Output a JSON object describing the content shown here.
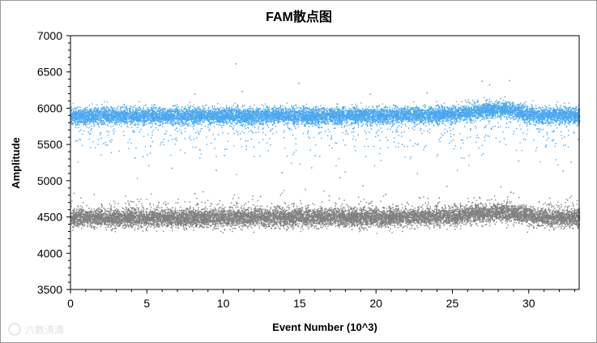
{
  "chart_data": {
    "type": "scatter",
    "title": "FAM散点图",
    "xlabel": "Event Number (10^3)",
    "ylabel": "Amplitude",
    "xlim": [
      0,
      33.3
    ],
    "ylim": [
      3500,
      7000
    ],
    "x_ticks": [
      0,
      5,
      10,
      15,
      20,
      25,
      30
    ],
    "y_ticks": [
      3500,
      4000,
      4500,
      5000,
      5500,
      6000,
      6500,
      7000
    ],
    "grid": false,
    "legend": "none",
    "series": [
      {
        "color": "#4aa8f0",
        "point_count": 12000,
        "band": {
          "x": [
            0,
            5,
            10,
            15,
            20,
            25,
            26.5,
            27.5,
            28.5,
            29.5,
            30.5,
            33.3
          ],
          "center": [
            5900,
            5900,
            5905,
            5905,
            5905,
            5920,
            5960,
            5990,
            5985,
            5950,
            5910,
            5905
          ],
          "spread_sd": 55
        },
        "outlier_points": [
          {
            "x": 10.8,
            "y": 6620
          },
          {
            "x": 8.1,
            "y": 6200
          },
          {
            "x": 14.9,
            "y": 6350
          },
          {
            "x": 26.9,
            "y": 6380
          },
          {
            "x": 28.7,
            "y": 6390
          },
          {
            "x": 27.4,
            "y": 6330
          },
          {
            "x": 11.2,
            "y": 6240
          },
          {
            "x": 23.3,
            "y": 6220
          },
          {
            "x": 19.6,
            "y": 6200
          },
          {
            "x": 9.5,
            "y": 5150
          },
          {
            "x": 13.8,
            "y": 5120
          },
          {
            "x": 17.6,
            "y": 5050
          },
          {
            "x": 24.6,
            "y": 4930
          },
          {
            "x": 29.3,
            "y": 5280
          },
          {
            "x": 32.2,
            "y": 5140
          },
          {
            "x": 4.2,
            "y": 5320
          },
          {
            "x": 6.6,
            "y": 5180
          },
          {
            "x": 31.5,
            "y": 5560
          }
        ]
      },
      {
        "color": "#808080",
        "point_count": 12000,
        "band": {
          "x": [
            0,
            5,
            10,
            15,
            20,
            25,
            26.5,
            27.5,
            28.5,
            29.5,
            30.5,
            33.3
          ],
          "center": [
            4490,
            4490,
            4495,
            4500,
            4500,
            4515,
            4545,
            4560,
            4560,
            4540,
            4500,
            4495
          ],
          "spread_sd": 60
        },
        "outlier_points": [
          {
            "x": 8.1,
            "y": 4830
          },
          {
            "x": 24.1,
            "y": 4770
          },
          {
            "x": 28.8,
            "y": 4850
          },
          {
            "x": 20.6,
            "y": 4820
          },
          {
            "x": 16.9,
            "y": 4800
          },
          {
            "x": 12.4,
            "y": 4790
          }
        ]
      }
    ]
  },
  "watermark": {
    "text": "六数涛清"
  }
}
